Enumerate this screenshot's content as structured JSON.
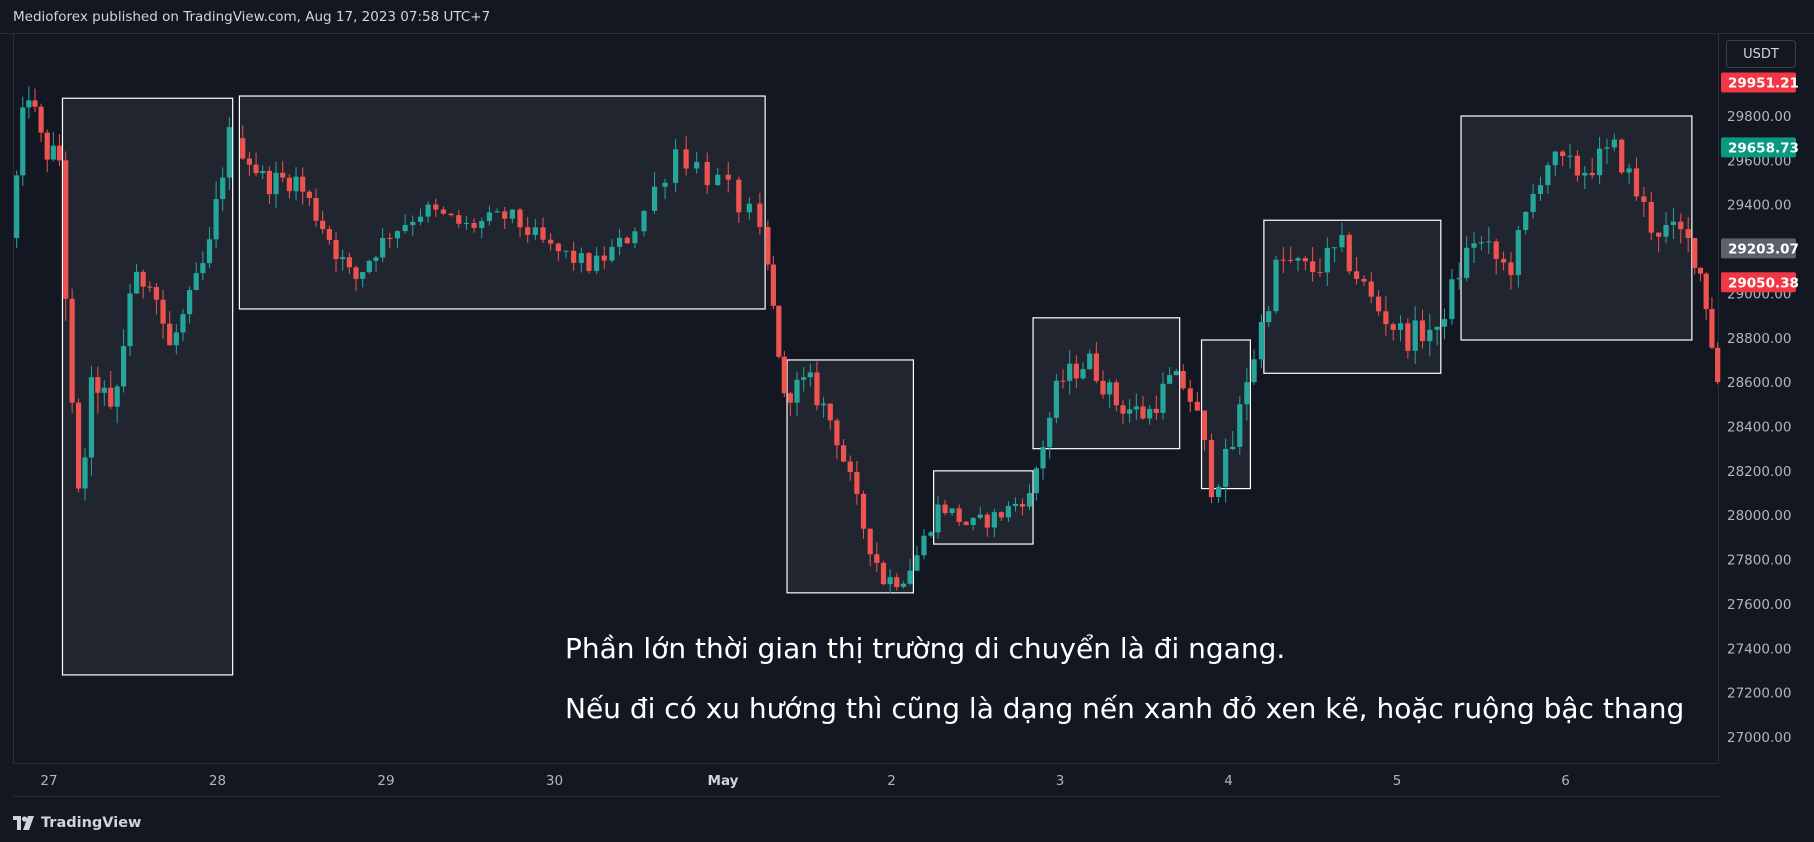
{
  "header": {
    "publisher_text": "Medioforex published on TradingView.com, Aug 17, 2023 07:58 UTC+7"
  },
  "footer": {
    "logo_text": "TradingView"
  },
  "price_axis": {
    "currency": "USDT",
    "ticks": [
      "29800.00",
      "29600.00",
      "29400.00",
      "29200.00",
      "29000.00",
      "28800.00",
      "28600.00",
      "28400.00",
      "28200.00",
      "28000.00",
      "27800.00",
      "27600.00",
      "27400.00",
      "27200.00",
      "27000.00"
    ],
    "tick_values": [
      29800,
      29600,
      29400,
      29200,
      29000,
      28800,
      28600,
      28400,
      28200,
      28000,
      27800,
      27600,
      27400,
      27200,
      27000
    ],
    "price_labels": [
      {
        "text": "29951.21",
        "value": 29951.21,
        "color": "#f23645"
      },
      {
        "text": "29658.73",
        "value": 29658.73,
        "color": "#089981"
      },
      {
        "text": "29203.07",
        "value": 29203.07,
        "color": "#5d606b"
      },
      {
        "text": "29050.38",
        "value": 29050.38,
        "color": "#f23645"
      }
    ]
  },
  "time_axis": {
    "labels": [
      "27",
      "28",
      "29",
      "30",
      "May",
      "2",
      "3",
      "4",
      "5",
      "6"
    ]
  },
  "annotations": {
    "line1": "Phần lớn thời gian thị trường di chuyển là đi ngang.",
    "line2": "Nếu đi có xu hướng thì cũng là dạng nến xanh đỏ xen kẽ, hoặc ruộng bậc thang"
  },
  "colors": {
    "up": "#26a69a",
    "down": "#ef5350",
    "background": "#131722",
    "box_fill": "#252833",
    "box_border": "#ffffff"
  },
  "chart_data": {
    "type": "candlestick",
    "title": "",
    "ylim": [
      26850,
      30100
    ],
    "x_labels": [
      "27",
      "28",
      "29",
      "30",
      "May",
      "2",
      "3",
      "4",
      "5",
      "6"
    ],
    "rectangles": [
      {
        "from_label": "27",
        "from_offset_days": 0.08,
        "to_label": "28",
        "to_offset_days": 0.09,
        "top": 29880,
        "bottom": 27280
      },
      {
        "from_label": "28",
        "from_offset_days": 0.13,
        "to_label": "May",
        "to_offset_days": 0.25,
        "top": 29890,
        "bottom": 28930
      },
      {
        "from_label": "May",
        "from_offset_days": 0.38,
        "to_label": "2",
        "to_offset_days": 0.13,
        "top": 28700,
        "bottom": 27650
      },
      {
        "from_label": "2",
        "from_offset_days": 0.25,
        "to_label": "3",
        "to_offset_days": -0.16,
        "top": 28200,
        "bottom": 27870
      },
      {
        "from_label": "3",
        "from_offset_days": -0.16,
        "to_label": "3",
        "to_offset_days": 0.71,
        "top": 28890,
        "bottom": 28300
      },
      {
        "from_label": "4",
        "from_offset_days": -0.16,
        "to_label": "4",
        "to_offset_days": 0.13,
        "top": 28790,
        "bottom": 28120
      },
      {
        "from_label": "4",
        "from_offset_days": 0.21,
        "to_label": "5",
        "to_offset_days": 0.26,
        "top": 29330,
        "bottom": 28640
      },
      {
        "from_label": "5",
        "from_offset_days": 0.38,
        "to_label": "6",
        "to_offset_days": 0.75,
        "top": 29800,
        "bottom": 28790
      }
    ],
    "segments": [
      {
        "start_label": "27",
        "start_offset_days": -0.21,
        "end_label": "27",
        "end_offset_days": 0.08,
        "count": 8,
        "anchors": [
          29250,
          29950,
          29650,
          29600
        ],
        "noise": 80
      },
      {
        "start_label": "27",
        "start_offset_days": 0.08,
        "end_label": "27",
        "end_offset_days": 0.5,
        "count": 11,
        "anchors": [
          29600,
          28000,
          28650,
          28400,
          29000
        ],
        "noise": 120
      },
      {
        "start_label": "27",
        "start_offset_days": 0.5,
        "end_label": "28",
        "end_offset_days": 0.09,
        "count": 15,
        "anchors": [
          29000,
          29100,
          28750,
          28950,
          29200,
          29750
        ],
        "noise": 90
      },
      {
        "start_label": "28",
        "start_offset_days": 0.13,
        "end_label": "29",
        "end_offset_days": 0.0,
        "count": 22,
        "anchors": [
          29700,
          29500,
          29520,
          29300,
          29050,
          29250
        ],
        "noise": 70
      },
      {
        "start_label": "29",
        "start_offset_days": 0.0,
        "end_label": "30",
        "end_offset_days": 0.5,
        "count": 33,
        "anchors": [
          29250,
          29380,
          29300,
          29350,
          29200,
          29120,
          29280
        ],
        "noise": 55
      },
      {
        "start_label": "30",
        "start_offset_days": 0.5,
        "end_label": "May",
        "end_offset_days": 0.25,
        "count": 12,
        "anchors": [
          29280,
          29650,
          29500,
          29300
        ],
        "noise": 80
      },
      {
        "start_label": "May",
        "start_offset_days": 0.25,
        "end_label": "May",
        "end_offset_days": 0.38,
        "count": 4,
        "anchors": [
          29300,
          28550
        ],
        "noise": 60
      },
      {
        "start_label": "May",
        "start_offset_days": 0.38,
        "end_label": "2",
        "end_offset_days": 0.13,
        "count": 19,
        "anchors": [
          28550,
          28600,
          28400,
          28000,
          27700,
          27750
        ],
        "noise": 70
      },
      {
        "start_label": "2",
        "start_offset_days": 0.13,
        "end_label": "3",
        "end_offset_days": -0.16,
        "count": 17,
        "anchors": [
          27750,
          28050,
          27950,
          28000,
          28100
        ],
        "noise": 50
      },
      {
        "start_label": "3",
        "start_offset_days": -0.16,
        "end_label": "3",
        "end_offset_days": 0.71,
        "count": 22,
        "anchors": [
          28100,
          28600,
          28700,
          28500,
          28450,
          28650
        ],
        "noise": 70
      },
      {
        "start_label": "3",
        "start_offset_days": 0.71,
        "end_label": "4",
        "end_offset_days": 0.13,
        "count": 10,
        "anchors": [
          28650,
          28500,
          28150,
          28250,
          28600
        ],
        "noise": 90
      },
      {
        "start_label": "4",
        "start_offset_days": 0.13,
        "end_label": "5",
        "end_offset_days": 0.26,
        "count": 26,
        "anchors": [
          28600,
          29150,
          29100,
          29200,
          28950,
          28800,
          28850
        ],
        "noise": 80
      },
      {
        "start_label": "5",
        "start_offset_days": 0.26,
        "end_label": "6",
        "end_offset_days": 0.75,
        "count": 34,
        "anchors": [
          28850,
          29250,
          29100,
          29600,
          29550,
          29650,
          29300,
          29250
        ],
        "noise": 80
      },
      {
        "start_label": "6",
        "start_offset_days": 0.75,
        "end_label": "6",
        "end_offset_days": 0.92,
        "count": 5,
        "anchors": [
          29250,
          29050,
          28600
        ],
        "noise": 70
      }
    ]
  }
}
